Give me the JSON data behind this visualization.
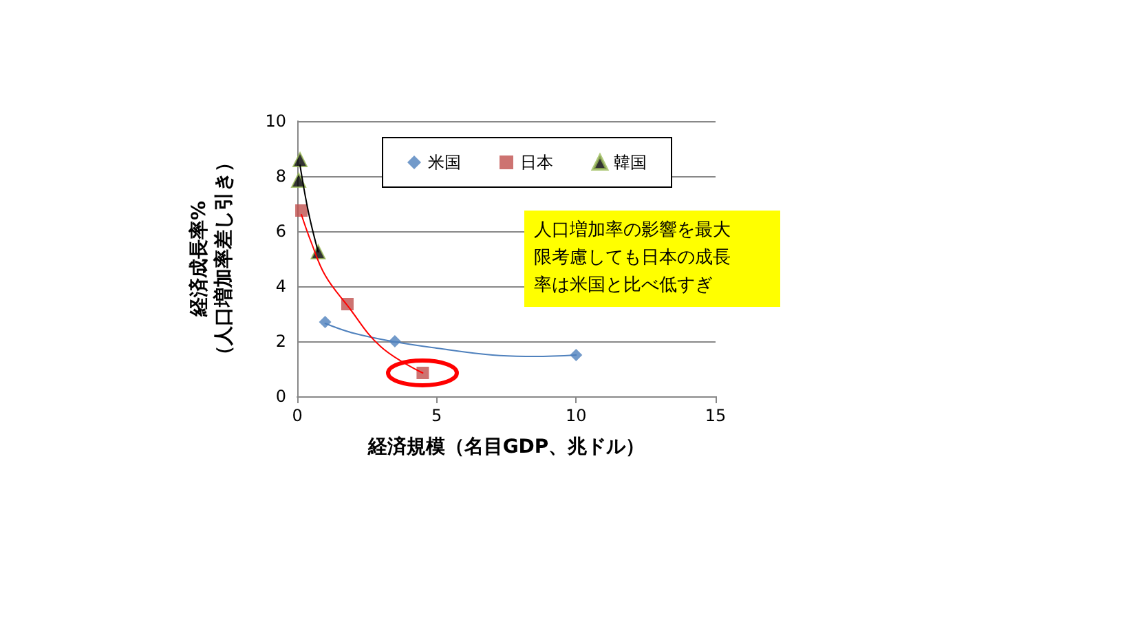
{
  "chart_data": {
    "type": "scatter",
    "xlabel": "経済規模（名目GDP、兆ドル）",
    "ylabel": "経済成長率%\n（人口増加率差し引き）",
    "xlim": [
      0,
      15
    ],
    "xticks": [
      0,
      5,
      10,
      15
    ],
    "ylim": [
      0,
      10
    ],
    "yticks": [
      0,
      2,
      4,
      6,
      8,
      10
    ],
    "grid": "y",
    "legend": "top right",
    "annotations": [
      "人口増加率の影響を最大限考慮しても日本の成長率は米国と比べ低すぎ"
    ],
    "series": [
      {
        "name": "米国",
        "color": "#4f81bd",
        "marker": "diamond",
        "x": [
          1.0,
          3.5,
          10
        ],
        "values": [
          2.7,
          2.0,
          1.5
        ]
      },
      {
        "name": "日本",
        "color": "#c0504d",
        "marker": "square",
        "x": [
          0.15,
          1.8,
          4.5
        ],
        "values": [
          6.75,
          3.35,
          0.85
        ]
      },
      {
        "name": "韓国",
        "color": "#000000",
        "marker": "triangle",
        "x": [
          0.1,
          0.05,
          0.75
        ],
        "values": [
          8.6,
          7.85,
          5.25
        ]
      },
      {
        "type": "line",
        "color": "#4f81bd",
        "x": [
          1,
          2,
          3.5,
          5,
          7,
          8.5,
          10
        ],
        "values": [
          2.65,
          2.3,
          1.98,
          1.75,
          1.5,
          1.45,
          1.5
        ]
      },
      {
        "type": "line",
        "color": "#ff0000",
        "x": [
          0.15,
          0.5,
          1,
          1.8,
          3,
          4.5
        ],
        "values": [
          6.6,
          5.6,
          4.4,
          3.3,
          1.8,
          0.85
        ]
      },
      {
        "type": "line",
        "color": "#000000",
        "x": [
          0.1,
          0.4,
          0.75
        ],
        "values": [
          8.4,
          6.7,
          5.25
        ]
      }
    ]
  }
}
